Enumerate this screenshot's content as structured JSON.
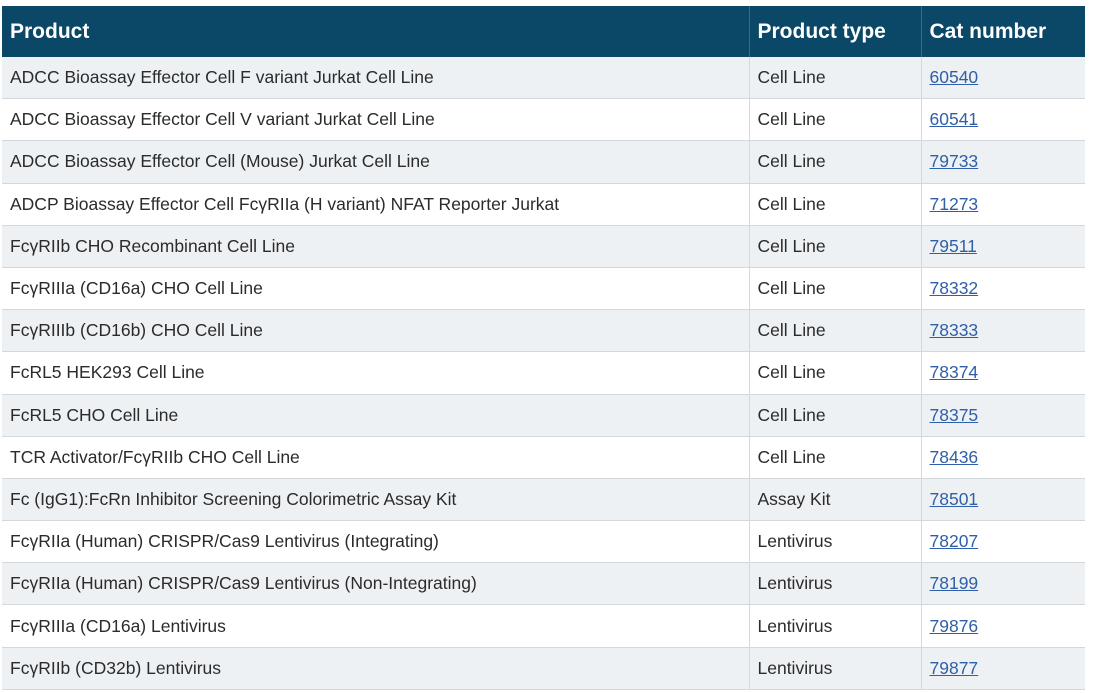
{
  "table": {
    "headers": {
      "product": "Product",
      "product_type": "Product type",
      "cat_number": "Cat number"
    },
    "rows": [
      {
        "product": "ADCC Bioassay Effector Cell F variant Jurkat Cell Line",
        "type": "Cell Line",
        "cat": "60540"
      },
      {
        "product": "ADCC Bioassay Effector Cell V variant Jurkat Cell Line",
        "type": "Cell Line",
        "cat": "60541"
      },
      {
        "product": "ADCC Bioassay Effector Cell (Mouse) Jurkat Cell Line",
        "type": "Cell Line",
        "cat": "79733"
      },
      {
        "product": "ADCP Bioassay Effector Cell FcγRIIa (H variant) NFAT Reporter Jurkat",
        "type": "Cell Line",
        "cat": "71273"
      },
      {
        "product": "FcγRIIb CHO Recombinant Cell Line",
        "type": "Cell Line",
        "cat": "79511"
      },
      {
        "product": "FcγRIIIa (CD16a) CHO Cell Line",
        "type": "Cell Line",
        "cat": "78332"
      },
      {
        "product": "FcγRIIIb (CD16b) CHO Cell Line",
        "type": "Cell Line",
        "cat": "78333"
      },
      {
        "product": "FcRL5 HEK293 Cell Line",
        "type": "Cell Line",
        "cat": "78374"
      },
      {
        "product": "FcRL5 CHO Cell Line",
        "type": "Cell Line",
        "cat": "78375"
      },
      {
        "product": "TCR Activator/FcγRIIb CHO Cell Line",
        "type": "Cell Line",
        "cat": "78436"
      },
      {
        "product": "Fc (IgG1):FcRn Inhibitor Screening Colorimetric Assay Kit",
        "type": "Assay Kit",
        "cat": "78501"
      },
      {
        "product": "FcγRIIa (Human) CRISPR/Cas9 Lentivirus (Integrating)",
        "type": "Lentivirus",
        "cat": "78207"
      },
      {
        "product": "FcγRIIa (Human) CRISPR/Cas9 Lentivirus (Non-Integrating)",
        "type": "Lentivirus",
        "cat": "78199"
      },
      {
        "product": "FcγRIIIa (CD16a) Lentivirus",
        "type": "Lentivirus",
        "cat": "79876"
      },
      {
        "product": "FcγRIIb (CD32b) Lentivirus",
        "type": "Lentivirus",
        "cat": "79877"
      }
    ]
  },
  "colors": {
    "header_bg": "#0b4766",
    "stripe_bg": "#eef1f4",
    "link": "#2f5fa8"
  }
}
